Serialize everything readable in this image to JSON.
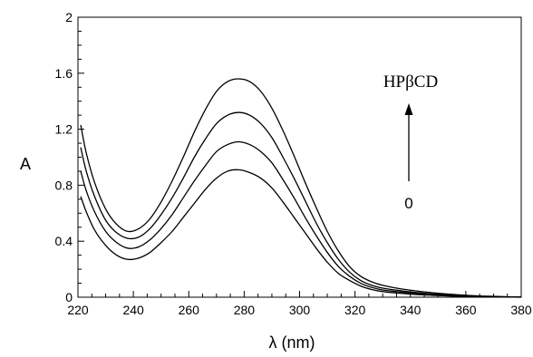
{
  "chart_data": {
    "type": "line",
    "title": "",
    "xlabel": "λ (nm)",
    "ylabel": "A",
    "xlim": [
      220,
      380
    ],
    "ylim": [
      0,
      2
    ],
    "xticks": [
      "220",
      "240",
      "260",
      "280",
      "300",
      "320",
      "340",
      "360",
      "380"
    ],
    "yticks": [
      "0",
      "0.4",
      "0.8",
      "1.2",
      "1.6",
      "2"
    ],
    "grid": false,
    "annotations": {
      "top_label": "HPβCD",
      "bottom_label": "0"
    },
    "x": [
      221,
      223,
      226,
      230,
      234,
      238,
      242,
      246,
      250,
      254,
      258,
      262,
      266,
      270,
      274,
      278,
      282,
      286,
      290,
      294,
      298,
      302,
      306,
      310,
      314,
      318,
      322,
      326,
      330,
      335,
      340,
      345,
      350,
      355,
      360,
      365,
      370,
      375,
      380
    ],
    "series": [
      {
        "values": [
          1.23,
          1.03,
          0.82,
          0.63,
          0.52,
          0.47,
          0.49,
          0.56,
          0.68,
          0.83,
          1.0,
          1.18,
          1.34,
          1.47,
          1.54,
          1.56,
          1.54,
          1.47,
          1.35,
          1.19,
          1.01,
          0.82,
          0.64,
          0.47,
          0.33,
          0.22,
          0.15,
          0.11,
          0.085,
          0.065,
          0.05,
          0.038,
          0.028,
          0.02,
          0.014,
          0.009,
          0.006,
          0.003,
          0.001
        ]
      },
      {
        "values": [
          1.07,
          0.9,
          0.72,
          0.55,
          0.46,
          0.42,
          0.43,
          0.49,
          0.59,
          0.71,
          0.85,
          1.0,
          1.13,
          1.24,
          1.3,
          1.32,
          1.3,
          1.24,
          1.14,
          1.0,
          0.85,
          0.69,
          0.53,
          0.39,
          0.27,
          0.18,
          0.12,
          0.085,
          0.065,
          0.05,
          0.038,
          0.028,
          0.02,
          0.015,
          0.01,
          0.007,
          0.004,
          0.002,
          0.001
        ]
      },
      {
        "values": [
          0.9,
          0.76,
          0.61,
          0.47,
          0.39,
          0.35,
          0.36,
          0.41,
          0.49,
          0.59,
          0.71,
          0.83,
          0.94,
          1.04,
          1.09,
          1.11,
          1.09,
          1.04,
          0.96,
          0.84,
          0.71,
          0.57,
          0.44,
          0.32,
          0.22,
          0.15,
          0.1,
          0.07,
          0.052,
          0.04,
          0.03,
          0.022,
          0.016,
          0.012,
          0.008,
          0.005,
          0.003,
          0.002,
          0.001
        ]
      },
      {
        "values": [
          0.72,
          0.61,
          0.48,
          0.37,
          0.3,
          0.27,
          0.28,
          0.32,
          0.39,
          0.47,
          0.57,
          0.67,
          0.77,
          0.85,
          0.9,
          0.91,
          0.89,
          0.85,
          0.78,
          0.68,
          0.57,
          0.46,
          0.35,
          0.25,
          0.17,
          0.12,
          0.08,
          0.055,
          0.04,
          0.03,
          0.022,
          0.016,
          0.012,
          0.008,
          0.006,
          0.004,
          0.002,
          0.001,
          0.0
        ]
      }
    ]
  }
}
